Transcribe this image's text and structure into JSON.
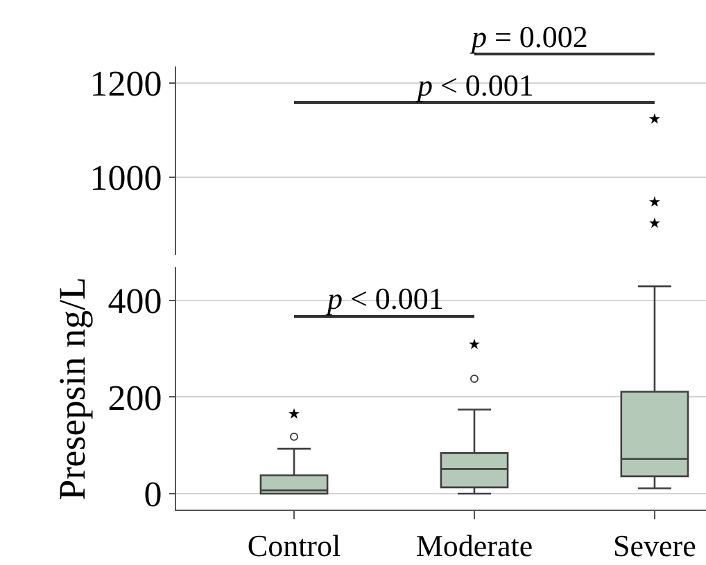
{
  "chart_data": [
    {
      "type": "scatter",
      "categories": [
        "Control",
        "Moderate",
        "Severe"
      ],
      "series": [
        {
          "type": "scatter",
          "marker": "star",
          "color": "#000000",
          "x": [
            "Severe",
            "Severe",
            "Severe"
          ],
          "values": [
            1123,
            947,
            902
          ]
        }
      ],
      "ylim": [
        835,
        1235
      ],
      "yticks": [
        1000,
        1200
      ],
      "tick_labels": "y",
      "grid": "y",
      "annotations": [
        "p < 0.001",
        "p = 0.002"
      ]
    },
    {
      "type": "box",
      "categories": [
        "Control",
        "Moderate",
        "Severe"
      ],
      "ylabel": "Presepsin ng/L",
      "color": "#b5c9b9",
      "boxes": [
        {
          "low": 0,
          "q1": 0,
          "median": 7,
          "q3": 38,
          "high": 93,
          "outliers": [
            118
          ]
        },
        {
          "low": 0,
          "q1": 13,
          "median": 51,
          "q3": 84,
          "high": 174,
          "outliers": [
            238
          ]
        },
        {
          "low": 11,
          "q1": 36,
          "median": 72,
          "q3": 211,
          "high": 429
        }
      ],
      "series": [
        {
          "type": "scatter",
          "marker": "star",
          "color": "#000000",
          "x": [
            "Control",
            "Moderate"
          ],
          "values": [
            165,
            309
          ]
        }
      ],
      "ylim": [
        -33,
        468
      ],
      "yticks": [
        0,
        200,
        400
      ],
      "grid": "y",
      "annotations": [
        "p < 0.001"
      ]
    }
  ]
}
